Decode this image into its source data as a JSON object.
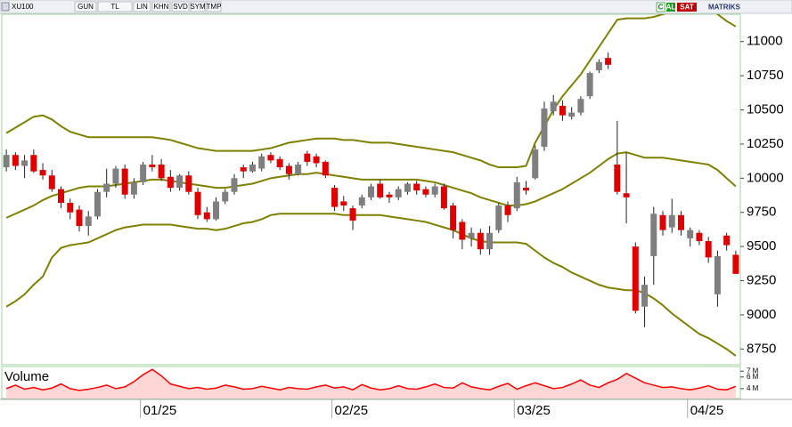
{
  "toolbar": {
    "symbol": "XU100",
    "buttons": [
      "GUN",
      "TL",
      "LIN",
      "KHN",
      "SVD",
      "SYM",
      "TMP"
    ],
    "c": "C",
    "buy": "AL",
    "sell": "SAT",
    "brand": "MATRIKS"
  },
  "chart_data": [
    {
      "type": "candlestick",
      "categories": [
        null,
        null,
        null,
        null,
        null,
        null,
        null,
        null,
        null,
        null,
        null,
        null,
        null,
        null,
        null,
        "01/25",
        null,
        null,
        null,
        null,
        null,
        null,
        null,
        null,
        null,
        null,
        null,
        null,
        null,
        null,
        null,
        null,
        null,
        null,
        null,
        null,
        "02/25",
        null,
        null,
        null,
        null,
        null,
        null,
        null,
        null,
        null,
        null,
        null,
        null,
        null,
        null,
        null,
        null,
        null,
        null,
        null,
        "03/25",
        null,
        null,
        null,
        null,
        null,
        null,
        null,
        null,
        null,
        null,
        null,
        null,
        null,
        null,
        null,
        null,
        null,
        null,
        "04/25",
        null,
        null,
        null,
        null,
        null
      ],
      "open": [
        10080,
        10170,
        10090,
        10170,
        10060,
        10020,
        9920,
        9820,
        9770,
        9650,
        9720,
        9900,
        9960,
        10070,
        9880,
        9970,
        10100,
        10100,
        10010,
        9930,
        10020,
        9900,
        9750,
        9700,
        9830,
        9900,
        10080,
        10050,
        10070,
        10170,
        10140,
        10090,
        10030,
        10180,
        10160,
        10120,
        9930,
        9830,
        9780,
        9800,
        9860,
        9960,
        9880,
        9860,
        9900,
        9960,
        9920,
        9880,
        9940,
        9800,
        9680,
        9560,
        9600,
        9480,
        9620,
        9800,
        9780,
        9930,
        10000,
        10230,
        10490,
        10530,
        10450,
        10480,
        10600,
        10790,
        10880,
        10100,
        9890,
        9500,
        9060,
        9430,
        9730,
        9640,
        9730,
        9560,
        9600,
        9540,
        9150,
        9580,
        9440
      ],
      "high": [
        10210,
        10190,
        10170,
        10210,
        10110,
        10060,
        9940,
        9850,
        9800,
        9760,
        9920,
        10070,
        10090,
        10100,
        10000,
        10120,
        10170,
        10140,
        10060,
        10030,
        10050,
        9930,
        9790,
        9860,
        9920,
        10030,
        10100,
        10120,
        10180,
        10190,
        10160,
        10110,
        10120,
        10200,
        10180,
        10130,
        9950,
        9870,
        9800,
        9880,
        9960,
        9990,
        9900,
        9940,
        9970,
        9980,
        9940,
        9960,
        9960,
        9820,
        9700,
        9640,
        9630,
        9650,
        9820,
        9830,
        10010,
        9980,
        10240,
        10560,
        10610,
        10570,
        10520,
        10600,
        10780,
        10870,
        10920,
        10420,
        10190,
        9530,
        9280,
        9790,
        9760,
        9850,
        9760,
        9640,
        9620,
        9570,
        9470,
        9600,
        9470
      ],
      "low": [
        10050,
        10060,
        10000,
        10040,
        9990,
        9900,
        9780,
        9700,
        9610,
        9580,
        9700,
        9860,
        9930,
        9850,
        9850,
        9950,
        10050,
        9980,
        9900,
        9910,
        9880,
        9700,
        9680,
        9690,
        9810,
        9880,
        10000,
        10040,
        10050,
        10110,
        10060,
        9990,
        10020,
        10090,
        10080,
        10000,
        9760,
        9760,
        9620,
        9780,
        9840,
        9850,
        9820,
        9840,
        9880,
        9880,
        9860,
        9860,
        9770,
        9560,
        9480,
        9500,
        9440,
        9440,
        9600,
        9680,
        9760,
        9880,
        9990,
        10200,
        10460,
        10420,
        10430,
        10460,
        10580,
        10770,
        10800,
        9880,
        9670,
        9010,
        8910,
        9220,
        9580,
        9600,
        9580,
        9500,
        9510,
        9380,
        9060,
        9470,
        9300
      ],
      "close": [
        10170,
        10090,
        10130,
        10050,
        10020,
        9920,
        9820,
        9750,
        9650,
        9720,
        9900,
        9960,
        10070,
        9880,
        9970,
        10100,
        10080,
        10000,
        9930,
        10020,
        9900,
        9730,
        9700,
        9830,
        9900,
        10000,
        10050,
        10100,
        10160,
        10130,
        10080,
        10030,
        10100,
        10120,
        10110,
        10020,
        9790,
        9800,
        9690,
        9860,
        9940,
        9860,
        9860,
        9920,
        9960,
        9910,
        9880,
        9940,
        9780,
        9620,
        9550,
        9600,
        9480,
        9600,
        9800,
        9730,
        9970,
        9910,
        10210,
        10510,
        10560,
        10460,
        10480,
        10580,
        10770,
        10850,
        10830,
        9900,
        9860,
        9030,
        9220,
        9740,
        9620,
        9730,
        9620,
        9620,
        9540,
        9420,
        9430,
        9510,
        9300
      ],
      "up_color": "#7f7f7f",
      "down_color": "#e00000",
      "series": [
        {
          "name": "Upper",
          "color": "#808000",
          "values": [
            10330,
            10370,
            10410,
            10450,
            10460,
            10430,
            10380,
            10340,
            10320,
            10300,
            10300,
            10300,
            10300,
            10300,
            10300,
            10300,
            10300,
            10290,
            10280,
            10260,
            10240,
            10220,
            10210,
            10200,
            10200,
            10200,
            10200,
            10200,
            10210,
            10220,
            10240,
            10260,
            10270,
            10280,
            10290,
            10290,
            10290,
            10280,
            10280,
            10270,
            10260,
            10260,
            10260,
            10250,
            10240,
            10230,
            10220,
            10210,
            10200,
            10190,
            10170,
            10150,
            10130,
            10100,
            10080,
            10080,
            10080,
            10090,
            10260,
            10380,
            10500,
            10600,
            10680,
            10760,
            10860,
            10960,
            11060,
            11160,
            11170,
            11170,
            11170,
            11180,
            11200,
            11220,
            11240,
            11260,
            11270,
            11260,
            11200,
            11150,
            11110
          ]
        },
        {
          "name": "Middle",
          "color": "#808000",
          "values": [
            9710,
            9740,
            9770,
            9800,
            9840,
            9870,
            9890,
            9910,
            9930,
            9940,
            9940,
            9940,
            9950,
            9960,
            9970,
            9980,
            9990,
            9990,
            9980,
            9970,
            9960,
            9950,
            9940,
            9930,
            9930,
            9940,
            9950,
            9960,
            9980,
            10000,
            10010,
            10020,
            10030,
            10030,
            10040,
            10030,
            10020,
            10010,
            10000,
            9990,
            9990,
            9990,
            9990,
            9990,
            9990,
            9990,
            9980,
            9970,
            9950,
            9930,
            9910,
            9890,
            9860,
            9840,
            9820,
            9800,
            9800,
            9810,
            9830,
            9860,
            9890,
            9920,
            9960,
            10000,
            10040,
            10090,
            10140,
            10180,
            10190,
            10170,
            10150,
            10150,
            10150,
            10140,
            10130,
            10120,
            10110,
            10100,
            10060,
            10000,
            9940
          ]
        },
        {
          "name": "Lower",
          "color": "#808000",
          "values": [
            9060,
            9100,
            9150,
            9220,
            9280,
            9420,
            9490,
            9510,
            9520,
            9530,
            9560,
            9590,
            9620,
            9640,
            9650,
            9660,
            9660,
            9660,
            9660,
            9650,
            9640,
            9630,
            9630,
            9620,
            9630,
            9650,
            9670,
            9680,
            9700,
            9730,
            9740,
            9740,
            9740,
            9740,
            9740,
            9740,
            9740,
            9730,
            9730,
            9730,
            9730,
            9730,
            9720,
            9710,
            9700,
            9690,
            9680,
            9660,
            9640,
            9620,
            9590,
            9560,
            9540,
            9530,
            9530,
            9530,
            9530,
            9520,
            9470,
            9420,
            9380,
            9350,
            9310,
            9280,
            9250,
            9220,
            9200,
            9190,
            9180,
            9180,
            9160,
            9120,
            9070,
            9010,
            8960,
            8910,
            8860,
            8830,
            8790,
            8750,
            8700
          ]
        }
      ],
      "ylim": [
        8635,
        11200
      ],
      "yticks": [
        8750,
        9000,
        9250,
        9500,
        9750,
        10000,
        10250,
        10500,
        10750,
        11000
      ]
    },
    {
      "type": "area",
      "title": "Volume",
      "color": "#ff0000",
      "fill": "#ffd6d6",
      "values": [
        4.0,
        4.6,
        3.9,
        4.2,
        3.8,
        4.1,
        4.8,
        4.0,
        3.7,
        3.9,
        4.2,
        4.6,
        4.0,
        4.3,
        5.2,
        6.4,
        7.3,
        6.2,
        4.8,
        4.4,
        4.0,
        4.2,
        3.9,
        4.1,
        4.6,
        4.3,
        3.9,
        4.0,
        4.4,
        4.1,
        3.8,
        4.2,
        4.0,
        3.9,
        4.3,
        4.6,
        4.1,
        4.3,
        3.8,
        4.7,
        4.1,
        3.8,
        4.0,
        4.5,
        4.0,
        3.9,
        4.3,
        4.8,
        4.2,
        4.1,
        5.0,
        4.3,
        4.0,
        3.8,
        4.4,
        4.9,
        3.9,
        4.5,
        5.0,
        4.5,
        4.0,
        4.2,
        4.8,
        5.5,
        4.6,
        4.2,
        5.0,
        5.6,
        6.6,
        5.8,
        5.0,
        4.6,
        4.2,
        4.3,
        4.0,
        3.8,
        4.1,
        4.5,
        3.9,
        3.8,
        4.4
      ],
      "ylim": [
        2.3,
        7.8
      ],
      "yticks": [
        {
          "value": 7,
          "label": "7 M"
        },
        {
          "value": 6,
          "label": "6 M"
        },
        {
          "value": 4,
          "label": "4 M"
        }
      ]
    }
  ]
}
